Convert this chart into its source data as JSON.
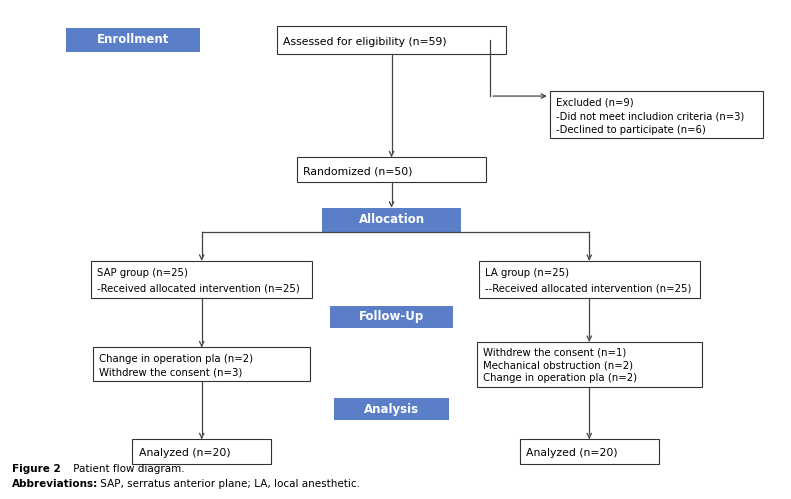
{
  "bg_color": "#ffffff",
  "blue_box_color": "#5b7ec9",
  "blue_box_text_color": "#ffffff",
  "border_color": "#333333",
  "arrow_color": "#444444",
  "text_color": "#000000",
  "enrollment_label": "Enrollment",
  "allocation_label": "Allocation",
  "followup_label": "Follow-Up",
  "analysis_label": "Analysis",
  "box_assessed": "Assessed for eligibility (n=59)",
  "box_excluded_line1": "Excluded (n=9)",
  "box_excluded_line2": "-Did not meet includion criteria (n=3)",
  "box_excluded_line3": "-Declined to participate (n=6)",
  "box_randomized": "Randomized (n=50)",
  "box_sap_line1": "SAP group (n=25)",
  "box_sap_line2": "-Received allocated intervention (n=25)",
  "box_la_line1": "LA group (n=25)",
  "box_la_line2": "--Received allocated intervention (n=25)",
  "box_sap_fu_line1": "Change in operation pla (n=2)",
  "box_sap_fu_line2": "Withdrew the consent (n=3)",
  "box_la_fu_line1": "Withdrew the consent (n=1)",
  "box_la_fu_line2": "Mechanical obstruction (n=2)",
  "box_la_fu_line3": "Change in operation pla (n=2)",
  "box_sap_an": "Analyzed (n=20)",
  "box_la_an": "Analyzed (n=20)",
  "caption_bold": "Figure 2",
  "caption_normal": " Patient flow diagram.",
  "abbrev_bold": "Abbreviations:",
  "abbrev_normal": " SAP, serratus anterior plane; LA, local anesthetic.",
  "fig_w": 7.91,
  "fig_h": 4.99,
  "dpi": 100
}
